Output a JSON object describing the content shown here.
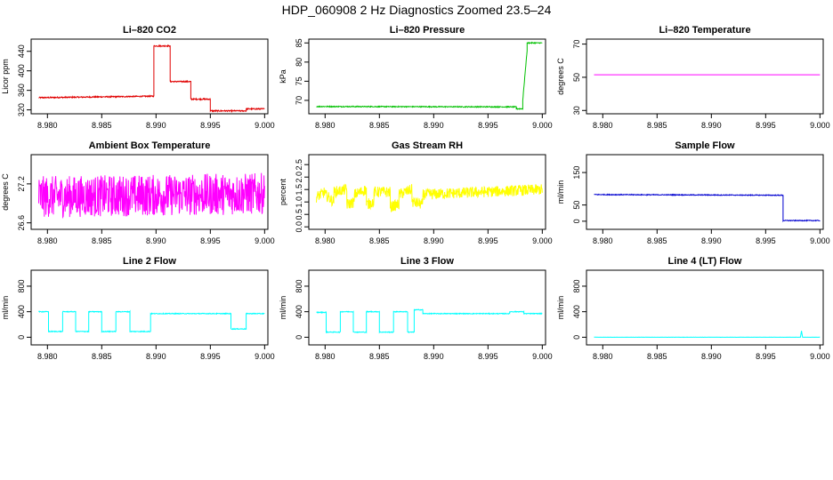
{
  "page": {
    "title": "HDP_060908  2 Hz Diagnostics Zoomed 23.5–24"
  },
  "chart_data": [
    {
      "type": "line",
      "title": "Li–820 CO2",
      "ylabel": "Licor ppm",
      "xlim": [
        8.9785,
        9.0003
      ],
      "ylim": [
        312,
        465
      ],
      "yticks": [
        320,
        360,
        400,
        440
      ],
      "xticks": [
        8.98,
        8.985,
        8.99,
        8.995,
        9.0
      ],
      "xtick_labels": [
        "8.980",
        "8.985",
        "8.990",
        "8.995",
        "9.000"
      ],
      "color": "#e00000",
      "noise": 1.2,
      "segments": [
        [
          8.9792,
          8.9898,
          345,
          348
        ],
        [
          8.9898,
          8.9913,
          451,
          451
        ],
        [
          8.9913,
          8.9932,
          378,
          378
        ],
        [
          8.9932,
          8.995,
          342,
          342
        ],
        [
          8.995,
          8.9983,
          318,
          318
        ],
        [
          8.9983,
          9.0,
          322,
          322
        ]
      ]
    },
    {
      "type": "line",
      "title": "Li–820 Pressure",
      "ylabel": "kPa",
      "xlim": [
        8.9785,
        9.0003
      ],
      "ylim": [
        66.5,
        86
      ],
      "yticks": [
        70,
        75,
        80,
        85
      ],
      "xticks": [
        8.98,
        8.985,
        8.99,
        8.995,
        9.0
      ],
      "xtick_labels": [
        "8.980",
        "8.985",
        "8.990",
        "8.995",
        "9.000"
      ],
      "color": "#00c000",
      "noise": 0.12,
      "segments": [
        [
          8.9792,
          8.9976,
          68.4,
          68.3
        ],
        [
          8.9976,
          8.9982,
          67.8,
          67.8
        ],
        [
          8.9982,
          8.9986,
          70,
          83
        ],
        [
          8.9986,
          9.0,
          85,
          85
        ]
      ]
    },
    {
      "type": "line",
      "title": "Li–820 Temperature",
      "ylabel": "degrees C",
      "xlim": [
        8.9785,
        9.0003
      ],
      "ylim": [
        28,
        73
      ],
      "yticks": [
        30,
        50,
        70
      ],
      "xticks": [
        8.98,
        8.985,
        8.99,
        8.995,
        9.0
      ],
      "xtick_labels": [
        "8.980",
        "8.985",
        "8.990",
        "8.995",
        "9.000"
      ],
      "color": "#ff00ff",
      "noise": 0,
      "segments": [
        [
          8.9792,
          9.0,
          51.5,
          51.5
        ]
      ]
    },
    {
      "type": "line",
      "title": "Ambient Box Temperature",
      "ylabel": "degrees C",
      "xlim": [
        8.9785,
        9.0003
      ],
      "ylim": [
        26.5,
        27.65
      ],
      "yticks": [
        26.6,
        27.2
      ],
      "xticks": [
        8.98,
        8.985,
        8.99,
        8.995,
        9.0
      ],
      "xtick_labels": [
        "8.980",
        "8.985",
        "8.990",
        "8.995",
        "9.000"
      ],
      "color": "#ff00ff",
      "noise": 0.32,
      "segments": [
        [
          8.9792,
          9.0,
          27.0,
          27.05
        ]
      ]
    },
    {
      "type": "line",
      "title": "Gas Stream RH",
      "ylabel": "percent",
      "xlim": [
        8.9785,
        9.0003
      ],
      "ylim": [
        -0.1,
        2.9
      ],
      "yticks": [
        0.0,
        0.5,
        1.0,
        1.5,
        2.0,
        2.5
      ],
      "ytick_labels": [
        "0.0",
        "0.5",
        "1.0",
        "1.5",
        "2.0",
        "2.5"
      ],
      "xticks": [
        8.98,
        8.985,
        8.99,
        8.995,
        9.0
      ],
      "xtick_labels": [
        "8.980",
        "8.985",
        "8.990",
        "8.995",
        "9.000"
      ],
      "color": "#ffff00",
      "noise": 0.22,
      "segments": [
        [
          8.9792,
          8.98,
          1.2,
          1.4
        ],
        [
          8.98,
          8.9808,
          1.3,
          1.0
        ],
        [
          8.9808,
          8.982,
          1.4,
          1.5
        ],
        [
          8.982,
          8.9827,
          0.9,
          1.0
        ],
        [
          8.9827,
          8.9838,
          1.3,
          1.5
        ],
        [
          8.9838,
          8.9845,
          0.9,
          1.0
        ],
        [
          8.9845,
          8.986,
          1.4,
          1.4
        ],
        [
          8.986,
          8.9868,
          0.8,
          0.9
        ],
        [
          8.9868,
          8.988,
          1.3,
          1.5
        ],
        [
          8.988,
          8.989,
          1.0,
          0.9
        ],
        [
          8.989,
          9.0,
          1.3,
          1.5
        ]
      ]
    },
    {
      "type": "line",
      "title": "Sample Flow",
      "ylabel": "ml/min",
      "xlim": [
        8.9785,
        9.0003
      ],
      "ylim": [
        -25,
        205
      ],
      "yticks": [
        0,
        50,
        150
      ],
      "xticks": [
        8.98,
        8.985,
        8.99,
        8.995,
        9.0
      ],
      "xtick_labels": [
        "8.980",
        "8.985",
        "8.990",
        "8.995",
        "9.000"
      ],
      "color": "#0000d0",
      "noise": 1.2,
      "segments": [
        [
          8.9792,
          8.9966,
          82,
          80
        ],
        [
          8.9966,
          9.0,
          2,
          2
        ]
      ]
    },
    {
      "type": "line",
      "title": "Line 2 Flow",
      "ylabel": "ml/min",
      "xlim": [
        8.9785,
        9.0003
      ],
      "ylim": [
        -120,
        1050
      ],
      "yticks": [
        0,
        400,
        800
      ],
      "xticks": [
        8.98,
        8.985,
        8.99,
        8.995,
        9.0
      ],
      "xtick_labels": [
        "8.980",
        "8.985",
        "8.990",
        "8.995",
        "9.000"
      ],
      "color": "#00ffff",
      "noise": 6,
      "segments": [
        [
          8.9792,
          8.9801,
          400,
          400
        ],
        [
          8.9801,
          8.9814,
          90,
          90
        ],
        [
          8.9814,
          8.9826,
          400,
          400
        ],
        [
          8.9826,
          8.9838,
          90,
          90
        ],
        [
          8.9838,
          8.985,
          400,
          400
        ],
        [
          8.985,
          8.9863,
          90,
          90
        ],
        [
          8.9863,
          8.9876,
          400,
          400
        ],
        [
          8.9876,
          8.9895,
          90,
          90
        ],
        [
          8.9895,
          8.9969,
          370,
          370
        ],
        [
          8.9969,
          8.9983,
          130,
          130
        ],
        [
          8.9983,
          9.0,
          370,
          370
        ]
      ]
    },
    {
      "type": "line",
      "title": "Line 3 Flow",
      "ylabel": "ml/min",
      "xlim": [
        8.9785,
        9.0003
      ],
      "ylim": [
        -120,
        1050
      ],
      "yticks": [
        0,
        400,
        800
      ],
      "xticks": [
        8.98,
        8.985,
        8.99,
        8.995,
        9.0
      ],
      "xtick_labels": [
        "8.980",
        "8.985",
        "8.990",
        "8.995",
        "9.000"
      ],
      "color": "#00ffff",
      "noise": 6,
      "segments": [
        [
          8.9792,
          8.9801,
          390,
          390
        ],
        [
          8.9801,
          8.9814,
          80,
          80
        ],
        [
          8.9814,
          8.9826,
          400,
          400
        ],
        [
          8.9826,
          8.9838,
          80,
          80
        ],
        [
          8.9838,
          8.985,
          400,
          400
        ],
        [
          8.985,
          8.9863,
          80,
          80
        ],
        [
          8.9863,
          8.9876,
          400,
          400
        ],
        [
          8.9876,
          8.9882,
          80,
          80
        ],
        [
          8.9882,
          8.989,
          430,
          430
        ],
        [
          8.989,
          8.997,
          370,
          370
        ],
        [
          8.997,
          8.9983,
          400,
          400
        ],
        [
          8.9983,
          9.0,
          370,
          370
        ]
      ]
    },
    {
      "type": "line",
      "title": "Line 4 (LT) Flow",
      "ylabel": "ml/min",
      "xlim": [
        8.9785,
        9.0003
      ],
      "ylim": [
        -120,
        1050
      ],
      "yticks": [
        0,
        400,
        800
      ],
      "xticks": [
        8.98,
        8.985,
        8.99,
        8.995,
        9.0
      ],
      "xtick_labels": [
        "8.980",
        "8.985",
        "8.990",
        "8.995",
        "9.000"
      ],
      "color": "#00ffff",
      "noise": 1,
      "segments": [
        [
          8.9792,
          8.9982,
          0,
          0
        ],
        [
          8.9982,
          8.9983,
          0,
          100
        ],
        [
          8.9983,
          8.9984,
          100,
          0
        ],
        [
          8.9984,
          9.0,
          0,
          0
        ]
      ]
    }
  ]
}
